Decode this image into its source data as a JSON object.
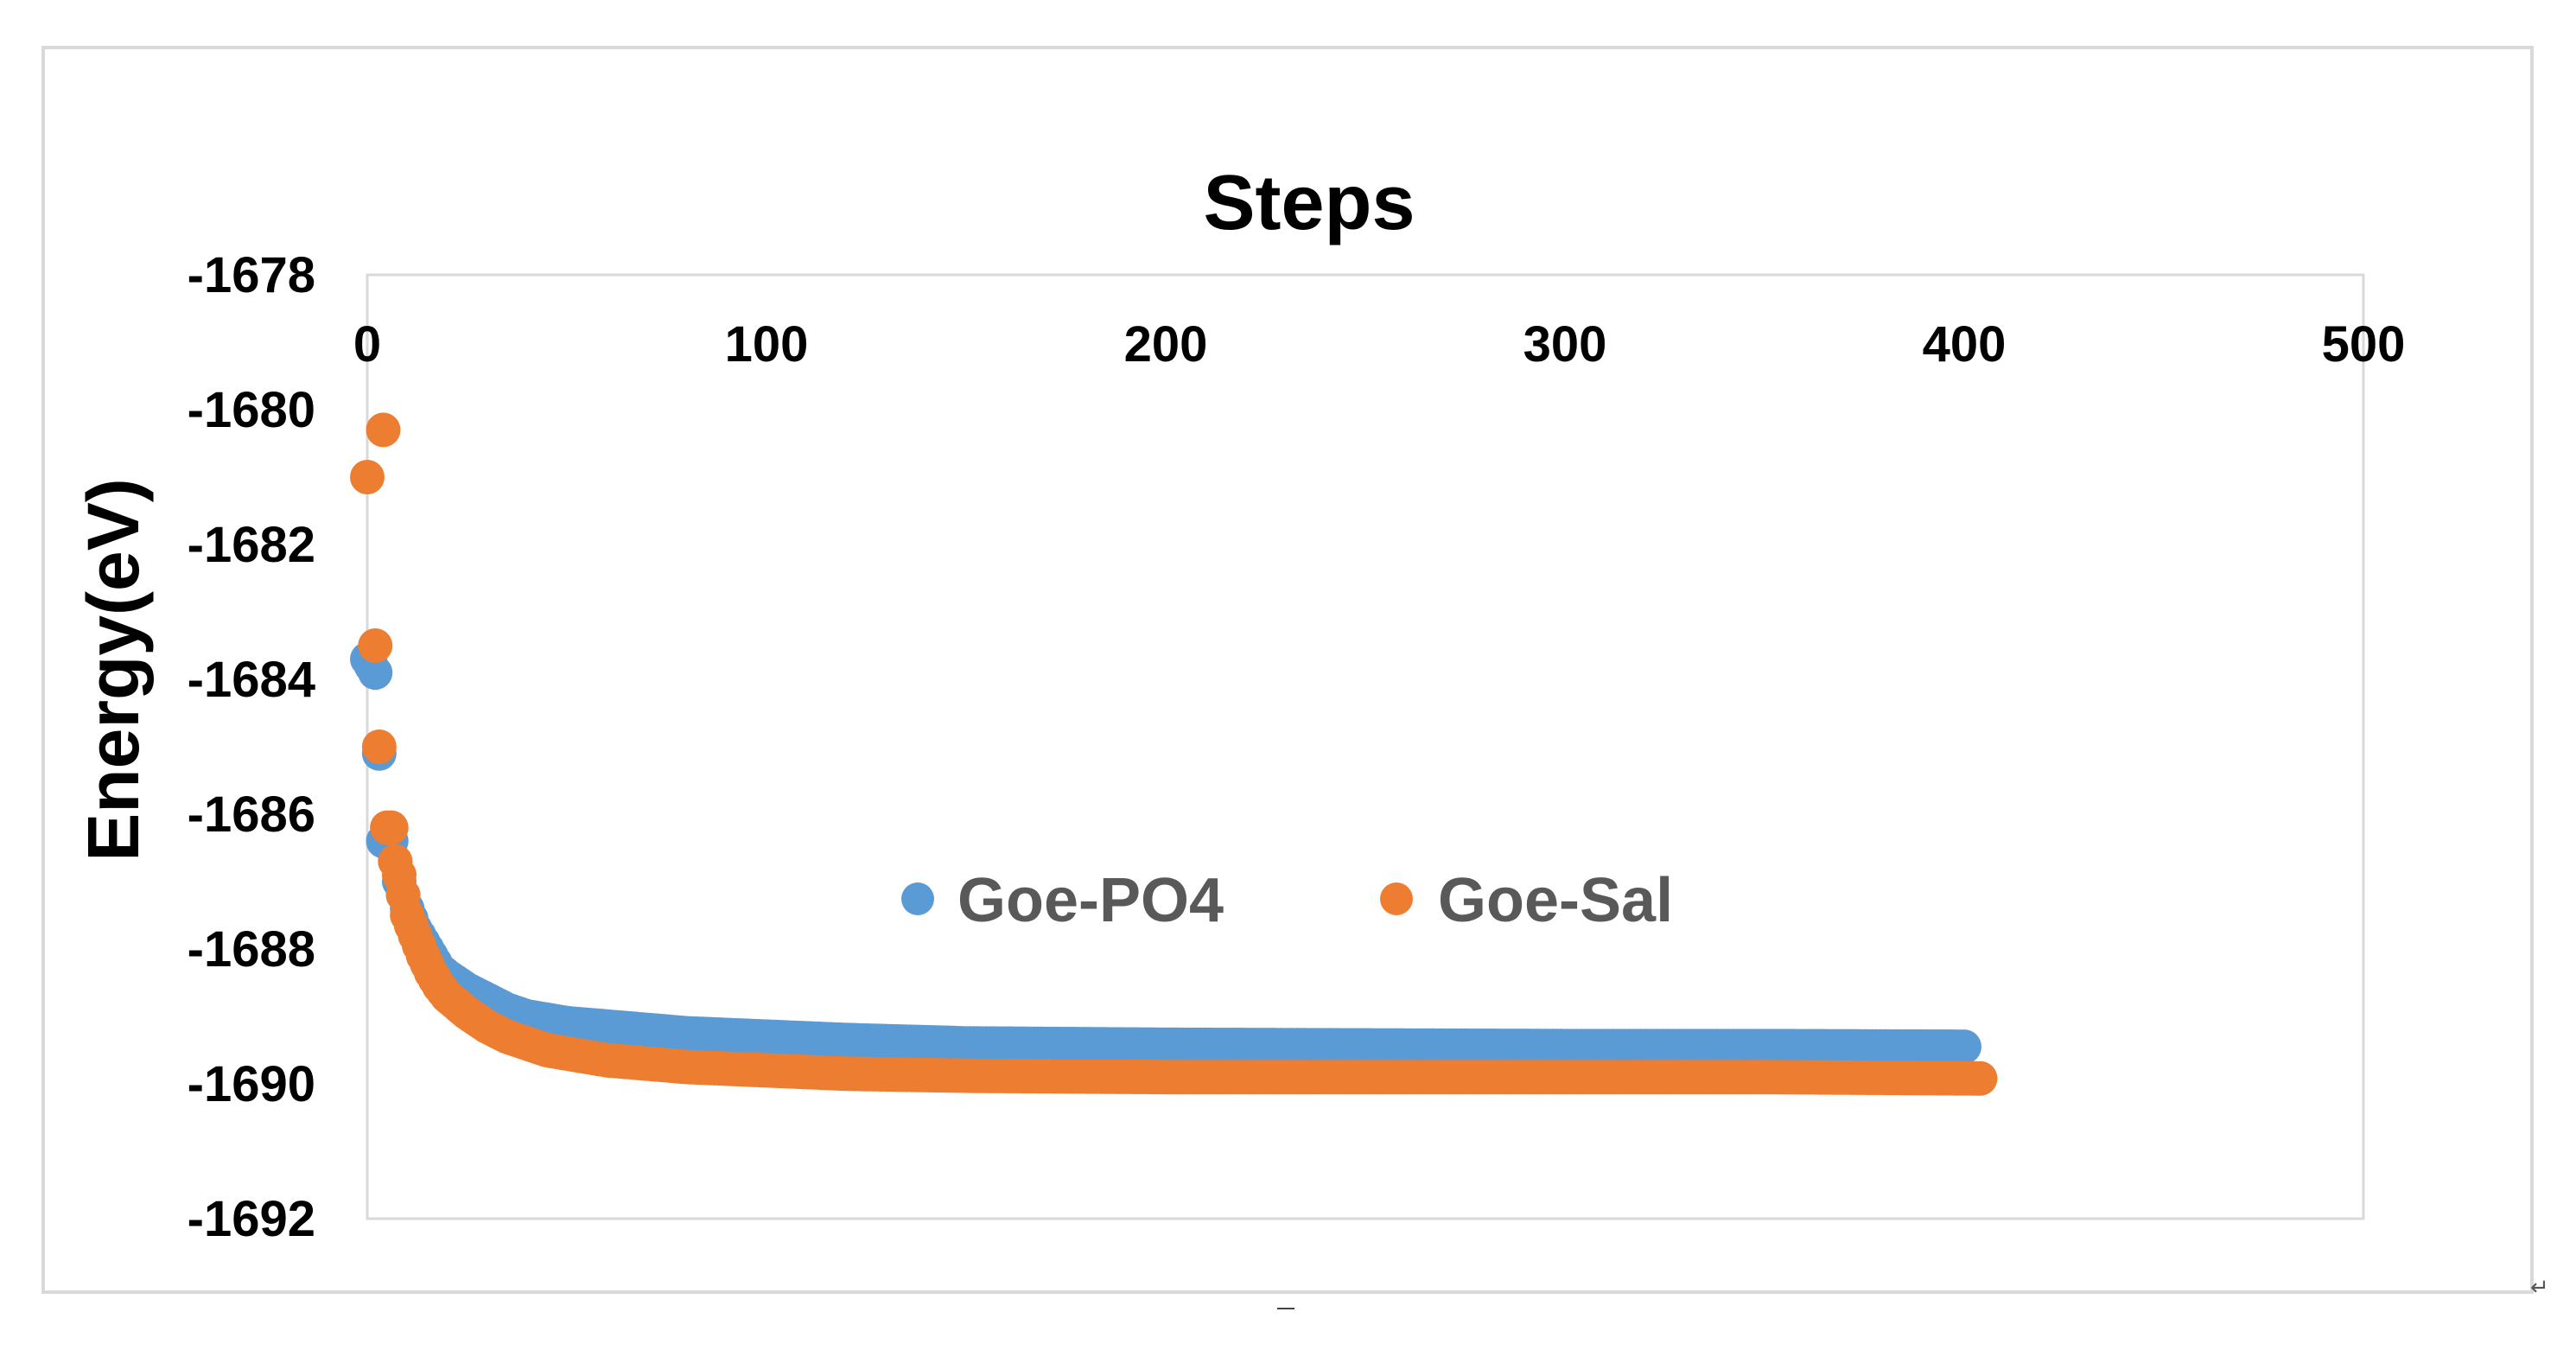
{
  "chart_data": {
    "type": "scatter",
    "title": "Steps",
    "xlabel": "",
    "ylabel": "Energy(eV)",
    "xlim": [
      0,
      500
    ],
    "ylim": [
      -1692,
      -1678
    ],
    "x_ticks": [
      "0",
      "100",
      "200",
      "300",
      "400",
      "500"
    ],
    "y_ticks": [
      "-1678",
      "-1680",
      "-1682",
      "-1684",
      "-1686",
      "-1688",
      "-1690",
      "-1692"
    ],
    "x_axis_position": "top",
    "grid": false,
    "legend_position": "center",
    "series": [
      {
        "name": "Goe-PO4",
        "color": "#5b9bd5",
        "points": [
          [
            0,
            -1683.7
          ],
          [
            2,
            -1683.9
          ],
          [
            3,
            -1685.1
          ],
          [
            4,
            -1686.4
          ],
          [
            6,
            -1686.4
          ],
          [
            8,
            -1687.0
          ],
          [
            10,
            -1687.4
          ],
          [
            12,
            -1687.7
          ],
          [
            14,
            -1687.9
          ],
          [
            16,
            -1688.1
          ],
          [
            18,
            -1688.3
          ],
          [
            20,
            -1688.4
          ],
          [
            25,
            -1688.6
          ],
          [
            30,
            -1688.75
          ],
          [
            35,
            -1688.9
          ],
          [
            40,
            -1689.0
          ],
          [
            45,
            -1689.05
          ],
          [
            50,
            -1689.1
          ],
          [
            60,
            -1689.15
          ],
          [
            70,
            -1689.2
          ],
          [
            80,
            -1689.25
          ],
          [
            100,
            -1689.3
          ],
          [
            120,
            -1689.35
          ],
          [
            150,
            -1689.4
          ],
          [
            200,
            -1689.42
          ],
          [
            250,
            -1689.43
          ],
          [
            300,
            -1689.44
          ],
          [
            350,
            -1689.44
          ],
          [
            400,
            -1689.45
          ]
        ]
      },
      {
        "name": "Goe-Sal",
        "color": "#ed7d31",
        "points": [
          [
            0,
            -1681.0
          ],
          [
            2,
            -1683.5
          ],
          [
            3,
            -1685.0
          ],
          [
            4,
            -1680.3
          ],
          [
            5,
            -1686.2
          ],
          [
            6,
            -1686.2
          ],
          [
            7,
            -1686.7
          ],
          [
            8,
            -1686.9
          ],
          [
            9,
            -1687.2
          ],
          [
            10,
            -1687.5
          ],
          [
            12,
            -1687.8
          ],
          [
            14,
            -1688.1
          ],
          [
            16,
            -1688.35
          ],
          [
            18,
            -1688.55
          ],
          [
            20,
            -1688.7
          ],
          [
            25,
            -1688.95
          ],
          [
            30,
            -1689.15
          ],
          [
            35,
            -1689.3
          ],
          [
            40,
            -1689.4
          ],
          [
            45,
            -1689.5
          ],
          [
            50,
            -1689.55
          ],
          [
            60,
            -1689.65
          ],
          [
            70,
            -1689.7
          ],
          [
            80,
            -1689.75
          ],
          [
            100,
            -1689.8
          ],
          [
            120,
            -1689.85
          ],
          [
            150,
            -1689.88
          ],
          [
            200,
            -1689.9
          ],
          [
            250,
            -1689.9
          ],
          [
            300,
            -1689.9
          ],
          [
            350,
            -1689.9
          ],
          [
            404,
            -1689.92
          ]
        ]
      }
    ]
  }
}
